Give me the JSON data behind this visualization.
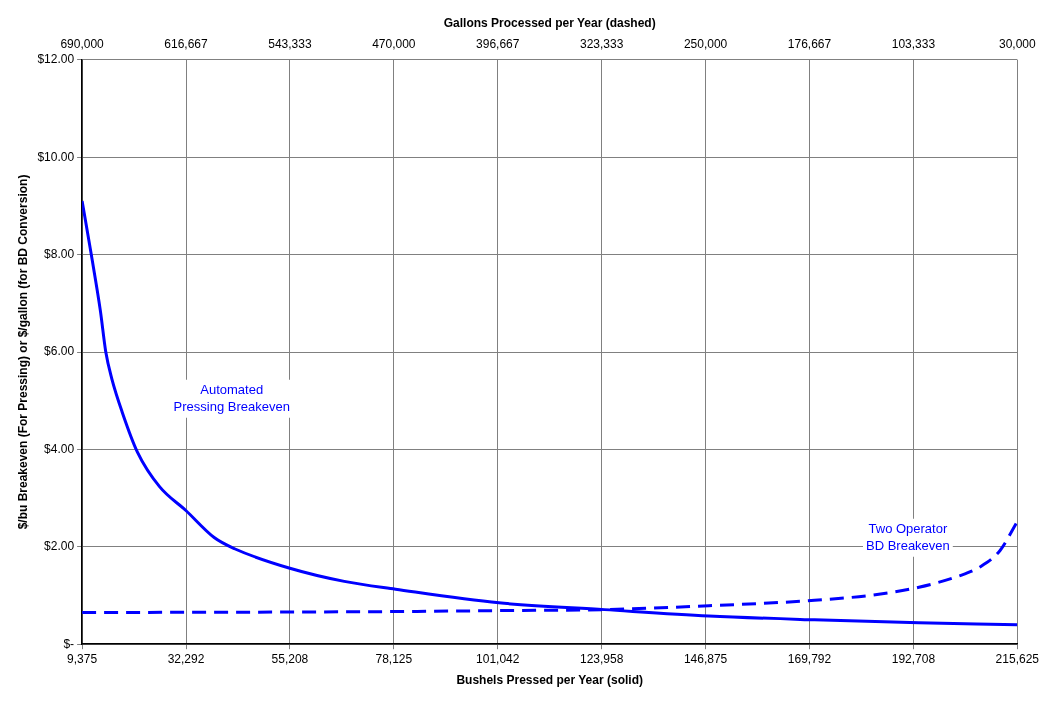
{
  "chart_data": {
    "type": "line",
    "xlabel": "Bushels Pressed per Year (solid)",
    "x2label": "Gallons Processed per Year (dashed)",
    "ylabel": "$/bu Breakeven (For Pressing) or $/gallon (for BD Conversion)",
    "xlim": [
      9375,
      215625
    ],
    "xticks": [
      {
        "value": 9375,
        "label": "9,375"
      },
      {
        "value": 32291.67,
        "label": "32,292"
      },
      {
        "value": 55208.33,
        "label": "55,208"
      },
      {
        "value": 78125,
        "label": "78,125"
      },
      {
        "value": 101041.67,
        "label": "101,042"
      },
      {
        "value": 123958.33,
        "label": "123,958"
      },
      {
        "value": 146875,
        "label": "146,875"
      },
      {
        "value": 169791.67,
        "label": "169,792"
      },
      {
        "value": 192708.33,
        "label": "192,708"
      },
      {
        "value": 215625,
        "label": "215,625"
      }
    ],
    "x2lim": [
      690000,
      30000
    ],
    "x2ticks": [
      {
        "value": 690000,
        "label": "690,000"
      },
      {
        "value": 616666.67,
        "label": "616,667"
      },
      {
        "value": 543333.33,
        "label": "543,333"
      },
      {
        "value": 470000,
        "label": "470,000"
      },
      {
        "value": 396666.67,
        "label": "396,667"
      },
      {
        "value": 323333.33,
        "label": "323,333"
      },
      {
        "value": 250000,
        "label": "250,000"
      },
      {
        "value": 176666.67,
        "label": "176,667"
      },
      {
        "value": 103333.33,
        "label": "103,333"
      },
      {
        "value": 30000,
        "label": "30,000"
      }
    ],
    "ylim": [
      0,
      12
    ],
    "yticks": [
      {
        "value": 0,
        "label": "$-"
      },
      {
        "value": 2,
        "label": "$2.00"
      },
      {
        "value": 4,
        "label": "$4.00"
      },
      {
        "value": 6,
        "label": "$6.00"
      },
      {
        "value": 8,
        "label": "$8.00"
      },
      {
        "value": 10,
        "label": "$10.00"
      },
      {
        "value": 12,
        "label": "$12.00"
      }
    ],
    "grid": true,
    "marker": "none",
    "series": [
      {
        "color": "#0000ff",
        "line_style": "solid",
        "x": [
          9375,
          11400,
          13400,
          14600,
          15900,
          18200,
          21600,
          26500,
          32200,
          38500,
          43000,
          55200,
          67200,
          78500,
          101300,
          124600,
          147600,
          170900,
          193900,
          215625
        ],
        "values": [
          9.1,
          8.0,
          6.85,
          6.0,
          5.46,
          4.77,
          3.94,
          3.23,
          2.75,
          2.19,
          1.96,
          1.56,
          1.29,
          1.13,
          0.85,
          0.71,
          0.58,
          0.5,
          0.44,
          0.4
        ]
      },
      {
        "color": "#0000ff",
        "line_style": "dashed",
        "axis": "x2",
        "x": [
          690000,
          548300,
          468800,
          395800,
          321300,
          247600,
          173100,
          129000,
          99400,
          71200,
          56700,
          42300,
          30000
        ],
        "values": [
          0.65,
          0.66,
          0.67,
          0.69,
          0.71,
          0.79,
          0.9,
          1.02,
          1.17,
          1.4,
          1.58,
          1.92,
          2.52
        ]
      }
    ],
    "annotations": [
      "Automated\nPressing Breakeven",
      "Two Operator\nBD Breakeven"
    ]
  }
}
